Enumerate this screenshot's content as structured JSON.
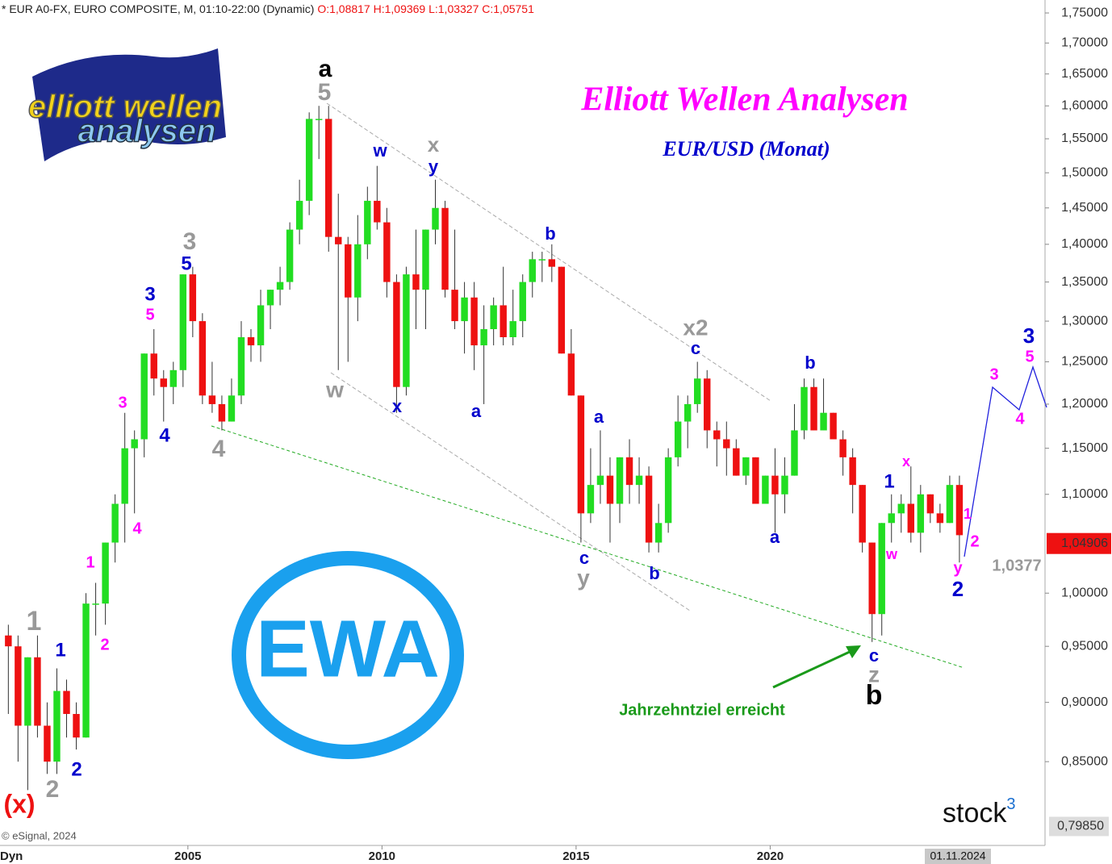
{
  "header": {
    "symbol": "* EUR A0-FX, EURO COMPOSITE, M, 01:10-22:00 (Dynamic)",
    "ohlc": "O:1,08817 H:1,09369 L:1,03327 C:1,05751"
  },
  "logo": {
    "line1": "elliott wellen",
    "line2": "analysen",
    "badge": "EWA"
  },
  "brand": {
    "name": "stock",
    "mark": "3"
  },
  "footer": {
    "copyright": "© eSignal, 2024",
    "mode": "Dyn",
    "cursor_date": "01.11.2024"
  },
  "chart_data": {
    "type": "candlestick",
    "title": "Elliott Wellen Analysen",
    "subtitle": "EUR/USD (Monat)",
    "yscale": "log",
    "up_color": "#22dd22",
    "down_color": "#ee1111",
    "xlim": [
      2000.16,
      2027.08
    ],
    "xticks": [
      2005,
      2010,
      2015,
      2020
    ],
    "ylim": [
      0.784,
      1.772
    ],
    "yticks": [
      {
        "value": 1.75,
        "label": "1,75000"
      },
      {
        "value": 1.7,
        "label": "1,70000"
      },
      {
        "value": 1.65,
        "label": "1,65000"
      },
      {
        "value": 1.6,
        "label": "1,60000"
      },
      {
        "value": 1.55,
        "label": "1,55000"
      },
      {
        "value": 1.5,
        "label": "1,50000"
      },
      {
        "value": 1.45,
        "label": "1,45000"
      },
      {
        "value": 1.4,
        "label": "1,40000"
      },
      {
        "value": 1.35,
        "label": "1,35000"
      },
      {
        "value": 1.3,
        "label": "1,30000"
      },
      {
        "value": 1.25,
        "label": "1,25000"
      },
      {
        "value": 1.2,
        "label": "1,20000"
      },
      {
        "value": 1.15,
        "label": "1,15000"
      },
      {
        "value": 1.1,
        "label": "1,10000"
      },
      {
        "value": 1.0,
        "label": "1,00000"
      },
      {
        "value": 0.95,
        "label": "0,95000"
      },
      {
        "value": 0.9,
        "label": "0,90000"
      },
      {
        "value": 0.85,
        "label": "0,85000"
      }
    ],
    "last_price": {
      "value": 1.04906,
      "label": "1,04906",
      "color": "#ee1111"
    },
    "low_marker": {
      "value": 0.7985,
      "label": "0,79850"
    },
    "x": [
      2000.375,
      2000.625,
      2000.875,
      2001.125,
      2001.375,
      2001.625,
      2001.875,
      2002.125,
      2002.375,
      2002.625,
      2002.875,
      2003.125,
      2003.375,
      2003.625,
      2003.875,
      2004.125,
      2004.375,
      2004.625,
      2004.875,
      2005.125,
      2005.375,
      2005.625,
      2005.875,
      2006.125,
      2006.375,
      2006.625,
      2006.875,
      2007.125,
      2007.375,
      2007.625,
      2007.875,
      2008.125,
      2008.375,
      2008.625,
      2008.875,
      2009.125,
      2009.375,
      2009.625,
      2009.875,
      2010.125,
      2010.375,
      2010.625,
      2010.875,
      2011.125,
      2011.375,
      2011.625,
      2011.875,
      2012.125,
      2012.375,
      2012.625,
      2012.875,
      2013.125,
      2013.375,
      2013.625,
      2013.875,
      2014.125,
      2014.375,
      2014.625,
      2014.875,
      2015.125,
      2015.375,
      2015.625,
      2015.875,
      2016.125,
      2016.375,
      2016.625,
      2016.875,
      2017.125,
      2017.375,
      2017.625,
      2017.875,
      2018.125,
      2018.375,
      2018.625,
      2018.875,
      2019.125,
      2019.375,
      2019.625,
      2019.875,
      2020.125,
      2020.375,
      2020.625,
      2020.875,
      2021.125,
      2021.375,
      2021.625,
      2021.875,
      2022.125,
      2022.375,
      2022.625,
      2022.875,
      2023.125,
      2023.375,
      2023.625,
      2023.875,
      2024.125,
      2024.375,
      2024.625,
      2024.875
    ],
    "open": [
      0.96,
      0.95,
      0.88,
      0.94,
      0.88,
      0.85,
      0.91,
      0.89,
      0.87,
      0.99,
      0.99,
      1.05,
      1.09,
      1.15,
      1.16,
      1.26,
      1.23,
      1.22,
      1.24,
      1.36,
      1.3,
      1.21,
      1.2,
      1.18,
      1.21,
      1.28,
      1.27,
      1.32,
      1.34,
      1.35,
      1.42,
      1.46,
      1.58,
      1.58,
      1.41,
      1.4,
      1.33,
      1.4,
      1.46,
      1.43,
      1.35,
      1.22,
      1.36,
      1.34,
      1.42,
      1.45,
      1.34,
      1.3,
      1.33,
      1.27,
      1.29,
      1.32,
      1.28,
      1.3,
      1.35,
      1.38,
      1.38,
      1.37,
      1.26,
      1.21,
      1.08,
      1.11,
      1.12,
      1.09,
      1.14,
      1.11,
      1.12,
      1.05,
      1.07,
      1.14,
      1.18,
      1.2,
      1.23,
      1.17,
      1.16,
      1.15,
      1.12,
      1.14,
      1.09,
      1.12,
      1.1,
      1.12,
      1.17,
      1.22,
      1.17,
      1.19,
      1.16,
      1.14,
      1.11,
      1.05,
      0.98,
      1.07,
      1.08,
      1.09,
      1.06,
      1.1,
      1.08,
      1.07,
      1.11
    ],
    "high": [
      0.97,
      0.96,
      0.94,
      0.96,
      0.9,
      0.93,
      0.92,
      0.9,
      1.0,
      1.01,
      1.05,
      1.1,
      1.19,
      1.17,
      1.26,
      1.29,
      1.24,
      1.25,
      1.36,
      1.37,
      1.31,
      1.25,
      1.21,
      1.23,
      1.3,
      1.29,
      1.34,
      1.34,
      1.37,
      1.43,
      1.49,
      1.59,
      1.6,
      1.6,
      1.47,
      1.41,
      1.44,
      1.48,
      1.51,
      1.45,
      1.36,
      1.37,
      1.42,
      1.42,
      1.49,
      1.46,
      1.42,
      1.35,
      1.35,
      1.32,
      1.33,
      1.37,
      1.34,
      1.36,
      1.39,
      1.39,
      1.4,
      1.37,
      1.29,
      1.21,
      1.15,
      1.17,
      1.14,
      1.14,
      1.16,
      1.14,
      1.13,
      1.09,
      1.15,
      1.21,
      1.21,
      1.25,
      1.24,
      1.18,
      1.18,
      1.16,
      1.14,
      1.14,
      1.12,
      1.15,
      1.14,
      1.2,
      1.23,
      1.23,
      1.23,
      1.19,
      1.17,
      1.15,
      1.11,
      1.05,
      1.07,
      1.1,
      1.1,
      1.13,
      1.11,
      1.1,
      1.09,
      1.12,
      1.12
    ],
    "low": [
      0.89,
      0.85,
      0.827,
      0.87,
      0.84,
      0.84,
      0.87,
      0.86,
      0.87,
      0.96,
      0.97,
      1.03,
      1.05,
      1.08,
      1.14,
      1.21,
      1.18,
      1.2,
      1.22,
      1.28,
      1.2,
      1.19,
      1.17,
      1.18,
      1.2,
      1.25,
      1.25,
      1.29,
      1.32,
      1.34,
      1.4,
      1.44,
      1.52,
      1.39,
      1.24,
      1.25,
      1.3,
      1.38,
      1.42,
      1.33,
      1.19,
      1.21,
      1.29,
      1.29,
      1.4,
      1.33,
      1.29,
      1.26,
      1.24,
      1.2,
      1.27,
      1.27,
      1.27,
      1.28,
      1.33,
      1.35,
      1.35,
      1.26,
      1.21,
      1.05,
      1.07,
      1.09,
      1.05,
      1.07,
      1.09,
      1.09,
      1.04,
      1.04,
      1.06,
      1.13,
      1.15,
      1.19,
      1.15,
      1.13,
      1.12,
      1.12,
      1.11,
      1.09,
      1.09,
      1.06,
      1.08,
      1.12,
      1.16,
      1.17,
      1.17,
      1.16,
      1.12,
      1.08,
      1.04,
      0.954,
      0.96,
      1.05,
      1.06,
      1.05,
      1.04,
      1.07,
      1.06,
      1.07,
      1.03
    ],
    "close": [
      0.95,
      0.88,
      0.94,
      0.88,
      0.85,
      0.91,
      0.89,
      0.87,
      0.99,
      0.99,
      1.05,
      1.09,
      1.15,
      1.16,
      1.26,
      1.23,
      1.22,
      1.24,
      1.36,
      1.3,
      1.21,
      1.2,
      1.18,
      1.21,
      1.28,
      1.27,
      1.32,
      1.34,
      1.35,
      1.42,
      1.46,
      1.58,
      1.58,
      1.41,
      1.4,
      1.33,
      1.4,
      1.46,
      1.43,
      1.35,
      1.22,
      1.36,
      1.34,
      1.42,
      1.45,
      1.34,
      1.3,
      1.33,
      1.27,
      1.29,
      1.32,
      1.28,
      1.3,
      1.35,
      1.38,
      1.38,
      1.37,
      1.26,
      1.21,
      1.08,
      1.11,
      1.12,
      1.09,
      1.14,
      1.11,
      1.12,
      1.05,
      1.07,
      1.14,
      1.18,
      1.2,
      1.23,
      1.17,
      1.16,
      1.15,
      1.12,
      1.14,
      1.09,
      1.12,
      1.1,
      1.12,
      1.17,
      1.22,
      1.17,
      1.19,
      1.16,
      1.14,
      1.11,
      1.05,
      0.98,
      1.07,
      1.08,
      1.09,
      1.06,
      1.1,
      1.08,
      1.07,
      1.11,
      1.0575
    ],
    "annotations": [
      {
        "text": "a",
        "color": "#000000"
      },
      {
        "text": "5",
        "color": "#999999"
      },
      {
        "text": "w",
        "color": "#0000cc"
      },
      {
        "text": "x",
        "color": "#999999"
      },
      {
        "text": "y",
        "color": "#0000cc"
      },
      {
        "text": "b",
        "color": "#0000cc"
      },
      {
        "text": "x2",
        "color": "#999999"
      },
      {
        "text": "c",
        "color": "#0000cc"
      },
      {
        "text": "b",
        "color": "#0000cc"
      },
      {
        "text": "3",
        "color": "#999999"
      },
      {
        "text": "5",
        "color": "#0000cc"
      },
      {
        "text": "3",
        "color": "#0000cc"
      },
      {
        "text": "5",
        "color": "#ff00ff"
      },
      {
        "text": "3",
        "color": "#ff00ff"
      },
      {
        "text": "4",
        "color": "#0000cc"
      },
      {
        "text": "4",
        "color": "#999999"
      },
      {
        "text": "4",
        "color": "#ff00ff"
      },
      {
        "text": "w",
        "color": "#999999"
      },
      {
        "text": "x",
        "color": "#0000cc"
      },
      {
        "text": "a",
        "color": "#0000cc"
      },
      {
        "text": "a",
        "color": "#0000cc"
      },
      {
        "text": "c",
        "color": "#0000cc"
      },
      {
        "text": "y",
        "color": "#999999"
      },
      {
        "text": "b",
        "color": "#0000cc"
      },
      {
        "text": "a",
        "color": "#0000cc"
      },
      {
        "text": "1",
        "color": "#0000cc"
      },
      {
        "text": "x",
        "color": "#ff00ff"
      },
      {
        "text": "w",
        "color": "#ff00ff"
      },
      {
        "text": "1",
        "color": "#ff00ff"
      },
      {
        "text": "2",
        "color": "#ff00ff"
      },
      {
        "text": "y",
        "color": "#ff00ff"
      },
      {
        "text": "2",
        "color": "#0000cc"
      },
      {
        "text": "3",
        "color": "#ff00ff"
      },
      {
        "text": "3",
        "color": "#0000cc"
      },
      {
        "text": "5",
        "color": "#ff00ff"
      },
      {
        "text": "4",
        "color": "#ff00ff"
      },
      {
        "text": "1,0377",
        "color": "#999999"
      },
      {
        "text": "c",
        "color": "#0000cc"
      },
      {
        "text": "z",
        "color": "#999999"
      },
      {
        "text": "b",
        "color": "#000000"
      },
      {
        "text": "Jahrzehntziel erreicht",
        "color": "#1a9a1a"
      },
      {
        "text": "1",
        "color": "#999999"
      },
      {
        "text": "1",
        "color": "#0000cc"
      },
      {
        "text": "2",
        "color": "#ff00ff"
      },
      {
        "text": "1",
        "color": "#ff00ff"
      },
      {
        "text": "2",
        "color": "#0000cc"
      },
      {
        "text": "2",
        "color": "#999999"
      },
      {
        "text": "(x)",
        "color": "#ee1111"
      }
    ]
  }
}
